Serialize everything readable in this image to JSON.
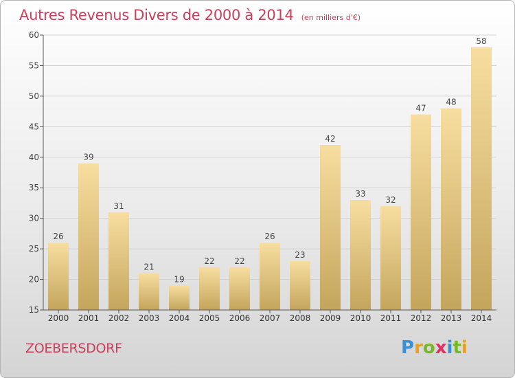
{
  "chart_data": {
    "type": "bar",
    "title": "Autres Revenus Divers de 2000 à 2014",
    "subtitle": "(en milliers d'€)",
    "categories": [
      "2000",
      "2001",
      "2002",
      "2003",
      "2004",
      "2005",
      "2006",
      "2007",
      "2008",
      "2009",
      "2010",
      "2011",
      "2012",
      "2013",
      "2014"
    ],
    "values": [
      26,
      39,
      31,
      21,
      19,
      22,
      22,
      26,
      23,
      42,
      33,
      32,
      47,
      48,
      58
    ],
    "ylim": [
      15,
      60
    ],
    "yticks": [
      15,
      20,
      25,
      30,
      35,
      40,
      45,
      50,
      55,
      60
    ],
    "grid": true,
    "bar_color_top": "#f7dea0",
    "bar_color_bottom": "#c4a55c"
  },
  "footer": {
    "commune": "ZOEBERSDORF",
    "logo_letters": [
      "P",
      "r",
      "o",
      "x",
      "i",
      "t",
      "i"
    ],
    "logo_colors": [
      "#3a8fd6",
      "#e8a020",
      "#78b828",
      "#e03060",
      "#3a8fd6",
      "#78b828",
      "#e8a020"
    ]
  }
}
